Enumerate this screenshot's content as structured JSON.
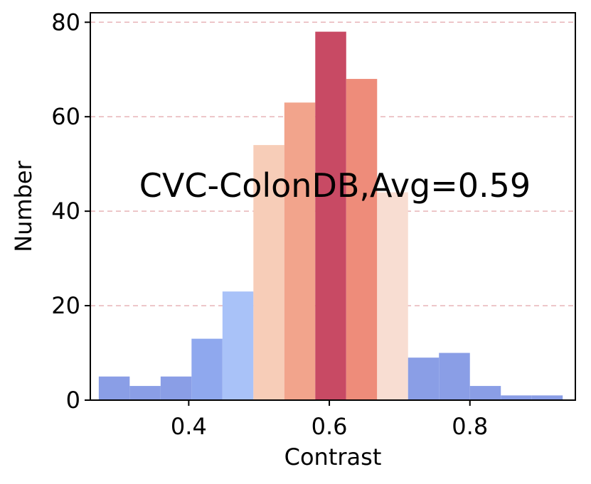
{
  "chart_data": {
    "type": "bar",
    "title": "",
    "annotation": "CVC-ColonDB,Avg=0.59",
    "xlabel": "Contrast",
    "ylabel": "Number",
    "xlim": [
      0.26,
      0.95
    ],
    "ylim": [
      0,
      82
    ],
    "xticks": [
      0.4,
      0.6,
      0.8
    ],
    "xtick_labels": [
      "0.4",
      "0.6",
      "0.8"
    ],
    "yticks": [
      0,
      20,
      40,
      60,
      80
    ],
    "ytick_labels": [
      "0",
      "20",
      "40",
      "60",
      "80"
    ],
    "grid": "horizontal dashed",
    "bins": [
      {
        "x0": 0.272,
        "x1": 0.316,
        "value": 5,
        "color": "#8a9ee6"
      },
      {
        "x0": 0.316,
        "x1": 0.36,
        "value": 3,
        "color": "#8a9ee6"
      },
      {
        "x0": 0.36,
        "x1": 0.404,
        "value": 5,
        "color": "#8a9ee6"
      },
      {
        "x0": 0.404,
        "x1": 0.448,
        "value": 13,
        "color": "#8fa8ee"
      },
      {
        "x0": 0.448,
        "x1": 0.492,
        "value": 23,
        "color": "#a9c2f8"
      },
      {
        "x0": 0.492,
        "x1": 0.536,
        "value": 54,
        "color": "#f7cdb8"
      },
      {
        "x0": 0.536,
        "x1": 0.58,
        "value": 63,
        "color": "#f2a48c"
      },
      {
        "x0": 0.58,
        "x1": 0.624,
        "value": 78,
        "color": "#c84a64"
      },
      {
        "x0": 0.624,
        "x1": 0.668,
        "value": 68,
        "color": "#ee8c7a"
      },
      {
        "x0": 0.668,
        "x1": 0.712,
        "value": 44,
        "color": "#f8ddd2"
      },
      {
        "x0": 0.712,
        "x1": 0.756,
        "value": 9,
        "color": "#8a9ee6"
      },
      {
        "x0": 0.756,
        "x1": 0.8,
        "value": 10,
        "color": "#8a9ee6"
      },
      {
        "x0": 0.8,
        "x1": 0.844,
        "value": 3,
        "color": "#8a9ee6"
      },
      {
        "x0": 0.844,
        "x1": 0.888,
        "value": 1,
        "color": "#8a9ee6"
      },
      {
        "x0": 0.888,
        "x1": 0.932,
        "value": 1,
        "color": "#8a9ee6"
      }
    ],
    "grid_color": "#e8b4b8"
  }
}
